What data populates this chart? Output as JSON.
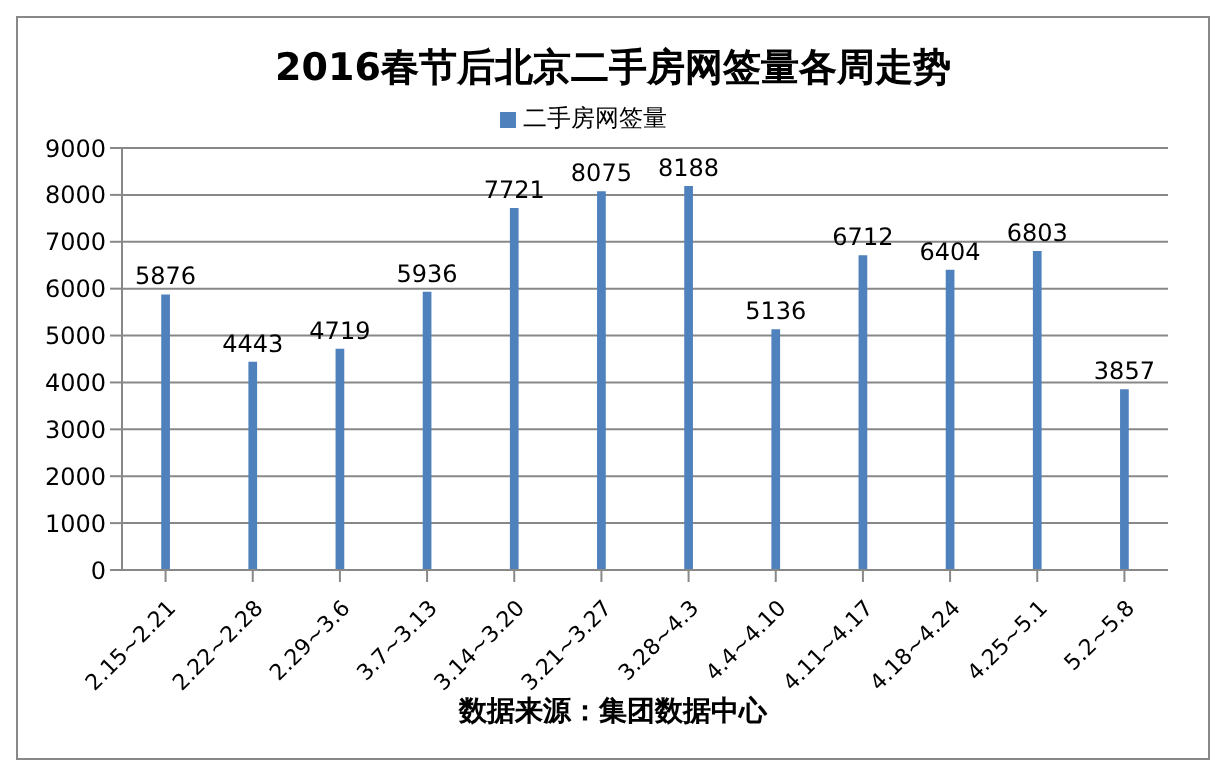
{
  "chart_data": {
    "type": "bar",
    "title": "2016春节后北京二手房网签量各周走势",
    "categories": [
      "2.15~2.21",
      "2.22~2.28",
      "2.29~3.6",
      "3.7~3.13",
      "3.14~3.20",
      "3.21~3.27",
      "3.28~4.3",
      "4.4~4.10",
      "4.11~4.17",
      "4.18~4.24",
      "4.25~5.1",
      "5.2~5.8"
    ],
    "series": [
      {
        "name": "二手房网签量",
        "color": "#4f81bd",
        "values": [
          5876,
          4443,
          4719,
          5936,
          7721,
          8075,
          8188,
          5136,
          6712,
          6404,
          6803,
          3857
        ]
      }
    ],
    "ylim": [
      0,
      9000
    ],
    "yticks": [
      0,
      1000,
      2000,
      3000,
      4000,
      5000,
      6000,
      7000,
      8000,
      9000
    ],
    "grid": "y",
    "legend": "top",
    "data_labels": true,
    "annotations": [
      "数据来源：集团数据中心"
    ]
  }
}
